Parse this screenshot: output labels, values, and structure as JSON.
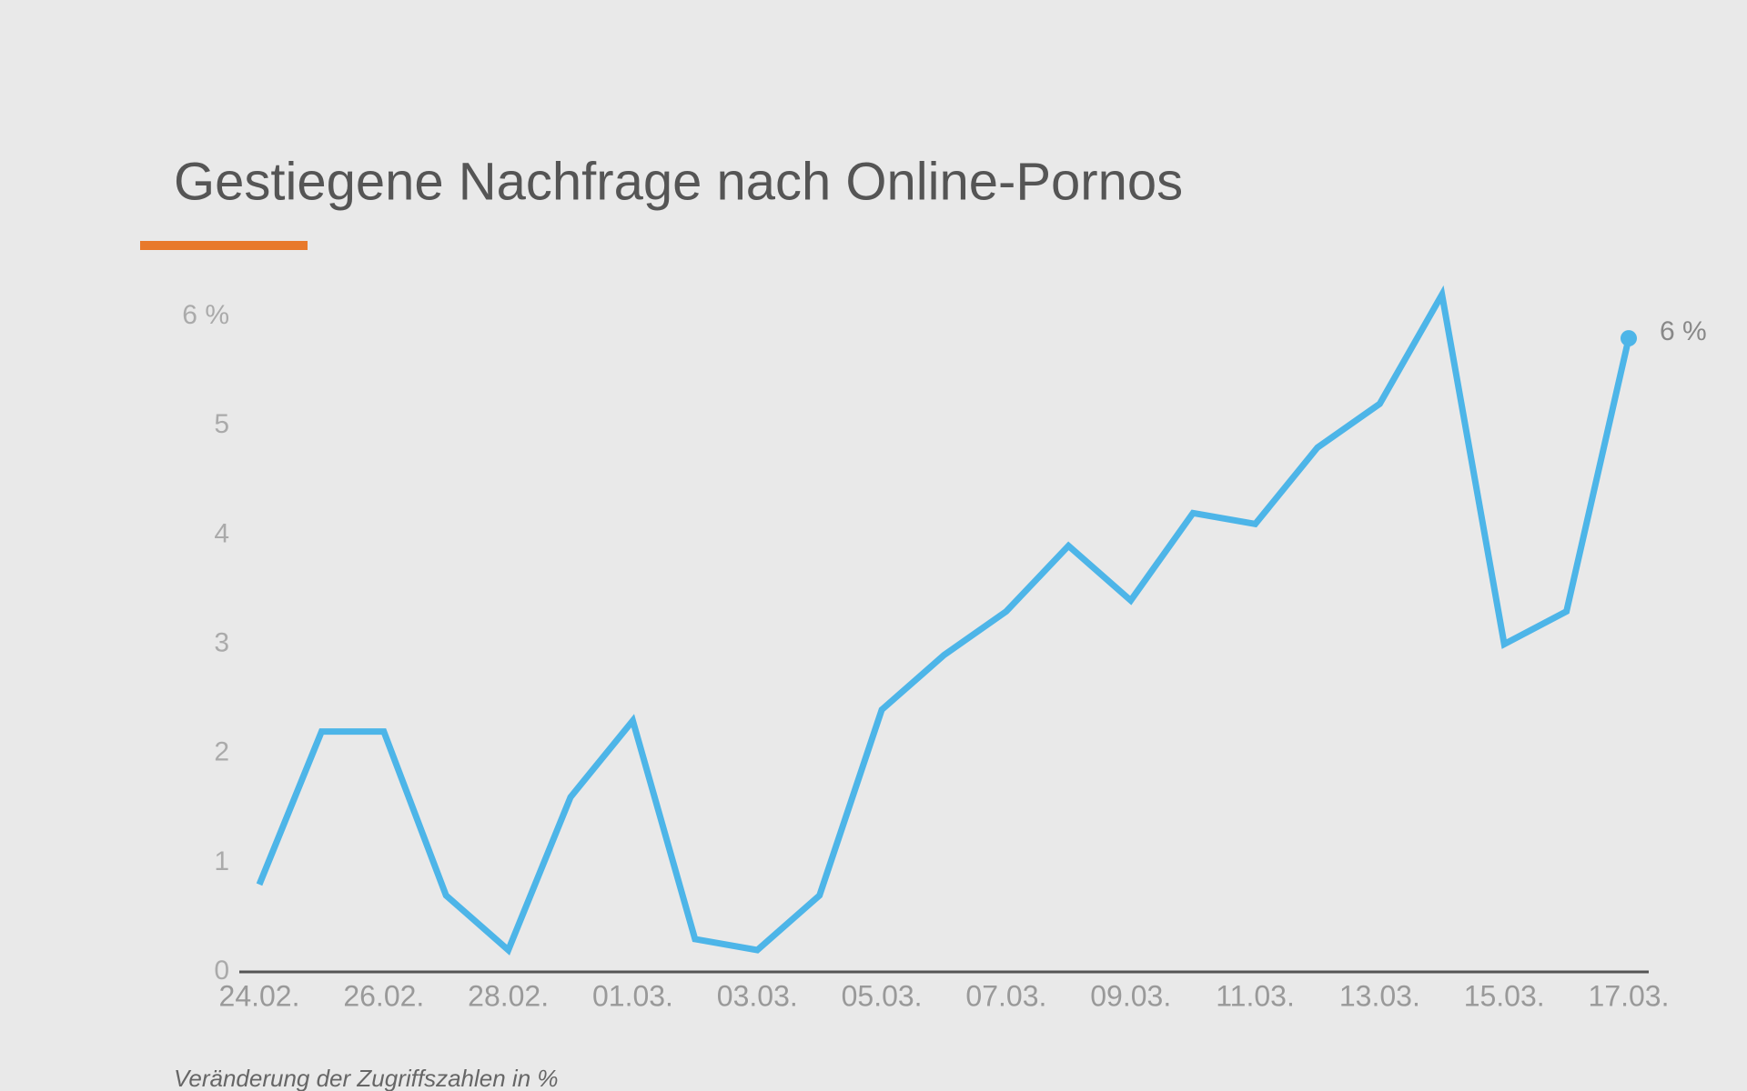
{
  "chart_data": {
    "type": "line",
    "title": "Gestiegene Nachfrage nach Online-Pornos",
    "note": "Veränderung der Zugriffszahlen in %",
    "categories": [
      "24.02.",
      null,
      "26.02.",
      null,
      "28.02.",
      null,
      "01.03.",
      null,
      "03.03.",
      null,
      "05.03.",
      null,
      "07.03.",
      null,
      "09.03.",
      null,
      "11.03.",
      null,
      "13.03.",
      null,
      "15.03.",
      null,
      "17.03."
    ],
    "series": [
      {
        "color": "#4db5e8",
        "values": [
          0.8,
          2.2,
          2.2,
          0.7,
          0.2,
          1.6,
          2.3,
          0.3,
          0.2,
          0.7,
          2.4,
          2.9,
          3.3,
          3.9,
          3.4,
          4.2,
          4.1,
          4.8,
          5.2,
          6.2,
          3.0,
          3.3,
          5.8
        ],
        "value_labels": [
          null,
          null,
          null,
          null,
          null,
          null,
          null,
          null,
          null,
          null,
          null,
          null,
          null,
          null,
          null,
          null,
          null,
          null,
          null,
          null,
          null,
          null,
          "6 %"
        ]
      }
    ],
    "ylim": [
      0,
      6.2
    ],
    "yticks": [
      0,
      1,
      2,
      3,
      4,
      5,
      {
        "value": 6,
        "label": "6 %"
      }
    ],
    "grid": false
  }
}
